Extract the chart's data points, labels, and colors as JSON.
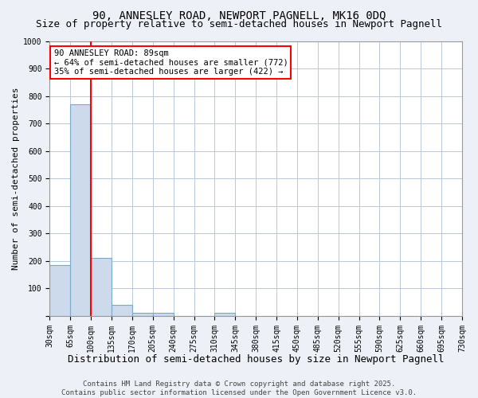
{
  "title": "90, ANNESLEY ROAD, NEWPORT PAGNELL, MK16 0DQ",
  "subtitle": "Size of property relative to semi-detached houses in Newport Pagnell",
  "xlabel": "Distribution of semi-detached houses by size in Newport Pagnell",
  "ylabel": "Number of semi-detached properties",
  "bin_labels": [
    "30sqm",
    "65sqm",
    "100sqm",
    "135sqm",
    "170sqm",
    "205sqm",
    "240sqm",
    "275sqm",
    "310sqm",
    "345sqm",
    "380sqm",
    "415sqm",
    "450sqm",
    "485sqm",
    "520sqm",
    "555sqm",
    "590sqm",
    "625sqm",
    "660sqm",
    "695sqm",
    "730sqm"
  ],
  "bar_heights": [
    185,
    770,
    210,
    40,
    10,
    10,
    0,
    0,
    10,
    0,
    0,
    0,
    0,
    0,
    0,
    0,
    0,
    0,
    0,
    0
  ],
  "bar_color": "#ccdaeb",
  "bar_edge_color": "#7aaac8",
  "property_line_x": 2,
  "property_line_color": "red",
  "annotation_line1": "90 ANNESLEY ROAD: 89sqm",
  "annotation_line2": "← 64% of semi-detached houses are smaller (772)",
  "annotation_line3": "35% of semi-detached houses are larger (422) →",
  "annotation_box_color": "white",
  "annotation_edge_color": "red",
  "ylim": [
    0,
    1000
  ],
  "yticks": [
    0,
    100,
    200,
    300,
    400,
    500,
    600,
    700,
    800,
    900,
    1000
  ],
  "footer_line1": "Contains HM Land Registry data © Crown copyright and database right 2025.",
  "footer_line2": "Contains public sector information licensed under the Open Government Licence v3.0.",
  "background_color": "#edf1f7",
  "plot_bg_color": "white",
  "grid_color": "#b8c8d8",
  "title_fontsize": 10,
  "subtitle_fontsize": 9,
  "xlabel_fontsize": 9,
  "ylabel_fontsize": 8,
  "tick_fontsize": 7,
  "footer_fontsize": 6.5,
  "annotation_fontsize": 7.5
}
